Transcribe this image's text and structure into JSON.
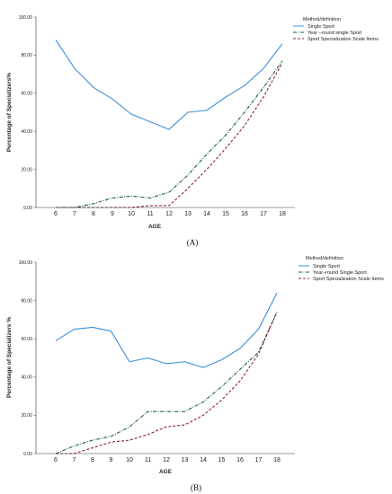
{
  "chart_data": [
    {
      "type": "line",
      "caption": "(A)",
      "xlabel": "AGE",
      "ylabel": "Percentage of Specializers%",
      "x": [
        6,
        7,
        8,
        9,
        10,
        11,
        12,
        13,
        14,
        15,
        16,
        17,
        18
      ],
      "ylim": [
        0,
        100
      ],
      "yticks": [
        "0.00",
        "20.00",
        "40.00",
        "60.00",
        "80.00",
        "100.00"
      ],
      "legend_title": "Method/definition",
      "legend_position": "top-right",
      "grid": false,
      "series": [
        {
          "name": "Single Sport",
          "color": "#3b8fd9",
          "dash": "solid",
          "values": [
            88,
            73,
            63,
            57,
            49,
            45,
            41,
            50,
            51,
            58,
            64,
            73,
            86
          ]
        },
        {
          "name": "Year –round single Sport",
          "color": "#1a5e46",
          "dash": "dashdot",
          "values": [
            0,
            0,
            2,
            5,
            6,
            5,
            8,
            17,
            28,
            38,
            50,
            63,
            77
          ]
        },
        {
          "name": "Sport Specialization Scale Items",
          "color": "#8a2340",
          "dash": "dash",
          "values": [
            0,
            0,
            0,
            0,
            0,
            1,
            1,
            10,
            20,
            31,
            43,
            58,
            76
          ]
        }
      ]
    },
    {
      "type": "line",
      "caption": "(B)",
      "xlabel": "AGE",
      "ylabel": "Percentage of Specializers %",
      "x": [
        6,
        7,
        8,
        9,
        10,
        11,
        12,
        13,
        14,
        15,
        16,
        17,
        18
      ],
      "ylim": [
        0,
        100
      ],
      "yticks": [
        "0.00",
        "20.00",
        "40.00",
        "60.00",
        "80.00",
        "100.00"
      ],
      "legend_title": "Method/definition",
      "legend_position": "top-right",
      "grid": false,
      "series": [
        {
          "name": "Single Sport",
          "color": "#3b8fd9",
          "dash": "solid",
          "values": [
            59,
            65,
            66,
            64,
            48,
            50,
            47,
            48,
            45,
            49,
            55,
            65,
            84
          ]
        },
        {
          "name": "Year–round Single Sport",
          "color": "#1a5e46",
          "dash": "dashdot",
          "values": [
            0,
            4,
            7,
            9,
            14,
            22,
            22,
            22,
            27,
            35,
            44,
            53,
            74
          ]
        },
        {
          "name": "Sport Specialization Scale Items",
          "color": "#8a2340",
          "dash": "dash",
          "values": [
            0,
            0,
            3,
            6,
            7,
            10,
            14,
            15,
            20,
            28,
            38,
            52,
            74
          ]
        }
      ]
    }
  ]
}
